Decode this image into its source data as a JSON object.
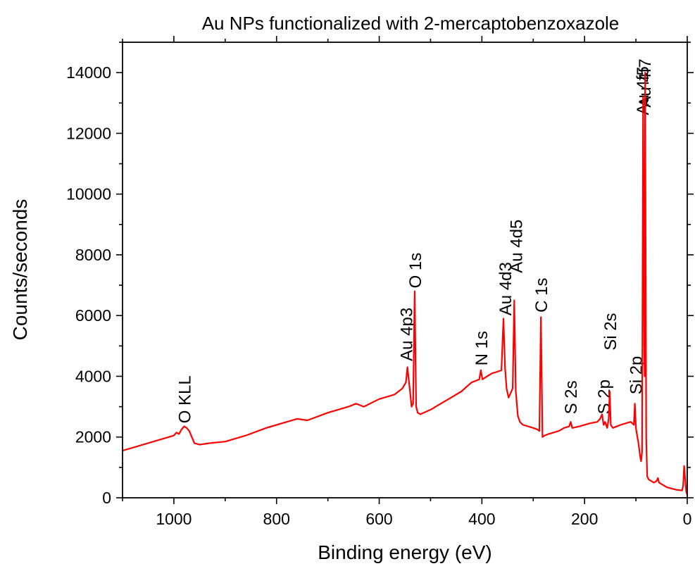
{
  "chart_data": {
    "type": "line",
    "title": "Au NPs functionalized with 2-mercaptobenzoxazole",
    "xlabel": "Binding energy (eV)",
    "ylabel": "Counts/seconds",
    "xlim": [
      1100,
      0
    ],
    "ylim": [
      0,
      15000
    ],
    "x_reversed": true,
    "x_ticks": [
      1000,
      800,
      600,
      400,
      200,
      0
    ],
    "y_ticks": [
      0,
      2000,
      4000,
      6000,
      8000,
      10000,
      12000,
      14000
    ],
    "grid": false,
    "series_color": "#ff0000",
    "series": [
      {
        "x": [
          1100,
          1080,
          1060,
          1040,
          1020,
          1000,
          995,
          990,
          985,
          980,
          975,
          970,
          965,
          960,
          950,
          930,
          900,
          860,
          820,
          780,
          760,
          740,
          700,
          660,
          645,
          630,
          600,
          570,
          555,
          548,
          545,
          540,
          537,
          534,
          531,
          528,
          525,
          520,
          500,
          480,
          460,
          440,
          420,
          405,
          402,
          399,
          390,
          380,
          370,
          362,
          358,
          355,
          352,
          348,
          344,
          340,
          337,
          334,
          330,
          326,
          320,
          310,
          300,
          292,
          288,
          285,
          282,
          278,
          270,
          250,
          240,
          230,
          227,
          224,
          210,
          190,
          175,
          170,
          166,
          163,
          160,
          156,
          153,
          151,
          149,
          145,
          130,
          120,
          110,
          104,
          102,
          100,
          98,
          95,
          92,
          90,
          88,
          86,
          84,
          83,
          82,
          80,
          78,
          75,
          70,
          65,
          60,
          57,
          55,
          50,
          40,
          30,
          25,
          20,
          15,
          10,
          8,
          6,
          4,
          2,
          0
        ],
        "y": [
          1550,
          1650,
          1750,
          1850,
          1950,
          2050,
          2150,
          2100,
          2250,
          2350,
          2300,
          2200,
          2000,
          1800,
          1750,
          1800,
          1850,
          2050,
          2300,
          2500,
          2600,
          2550,
          2800,
          3000,
          3100,
          3000,
          3250,
          3400,
          3600,
          3800,
          4300,
          3500,
          3000,
          3100,
          6800,
          3000,
          2800,
          2750,
          2900,
          3100,
          3300,
          3500,
          3800,
          3900,
          4200,
          3900,
          4000,
          4100,
          4150,
          4200,
          5900,
          4300,
          3600,
          3300,
          3450,
          3600,
          6500,
          3500,
          2700,
          2500,
          2400,
          2350,
          2300,
          2250,
          2200,
          5950,
          2000,
          2050,
          2100,
          2200,
          2300,
          2350,
          2500,
          2300,
          2350,
          2450,
          2500,
          2600,
          2750,
          2400,
          2500,
          2300,
          2600,
          3500,
          2400,
          2300,
          2400,
          2450,
          2500,
          2400,
          3100,
          2300,
          2100,
          1800,
          1400,
          1200,
          1500,
          13200,
          5000,
          4000,
          14000,
          2000,
          700,
          600,
          550,
          500,
          550,
          650,
          500,
          450,
          350,
          300,
          280,
          260,
          250,
          240,
          400,
          1050,
          600,
          200,
          100
        ]
      }
    ],
    "annotations": [
      {
        "text": "O KLL",
        "x": 980,
        "y": 2450
      },
      {
        "text": "Au 4p3",
        "x": 548,
        "y": 4500
      },
      {
        "text": "O 1s",
        "x": 531,
        "y": 6900
      },
      {
        "text": "N 1s",
        "x": 402,
        "y": 4350
      },
      {
        "text": "Au 4d3",
        "x": 355,
        "y": 6000
      },
      {
        "text": "Au 4d5",
        "x": 334,
        "y": 7400
      },
      {
        "text": "C 1s",
        "x": 285,
        "y": 6100
      },
      {
        "text": "S 2s",
        "x": 228,
        "y": 2750
      },
      {
        "text": "S 2p",
        "x": 163,
        "y": 2750
      },
      {
        "text": "Si 2s",
        "x": 151,
        "y": 4850
      },
      {
        "text": "Si 2p",
        "x": 101,
        "y": 3400
      },
      {
        "text": "Au 4f5",
        "x": 88,
        "y": 12600
      },
      {
        "text": "Au 4f7",
        "x": 84,
        "y": 12850
      }
    ]
  }
}
